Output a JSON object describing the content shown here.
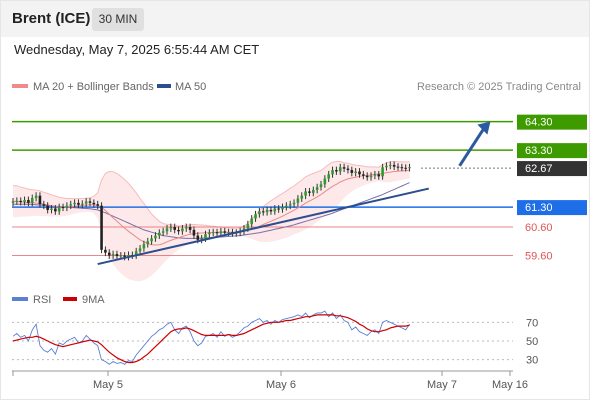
{
  "header": {
    "title": "Brent (ICE)",
    "timeframe": "30 MIN",
    "datetime": "Wednesday, May 7, 2025 6:55:44 AM CET"
  },
  "legend": {
    "ma20_label": "MA 20 + Bollinger Bands",
    "ma50_label": "MA 50",
    "credit": "Research © 2025 Trading Central"
  },
  "rsi_legend": {
    "rsi_label": "RSI",
    "ma_label": "9MA"
  },
  "chart_data": [
    {
      "type": "candlestick",
      "title": "Brent (ICE)",
      "x_ticks": [
        "May 5",
        "May 6",
        "May 7",
        "May 16"
      ],
      "ylim": [
        58.6,
        65.2
      ],
      "current_price": 62.67,
      "levels": [
        {
          "value": 64.3,
          "label": "64.30",
          "kind": "resistance",
          "color": "#3d9b00"
        },
        {
          "value": 63.3,
          "label": "63.30",
          "kind": "resistance",
          "color": "#3d9b00"
        },
        {
          "value": 62.67,
          "label": "62.67",
          "kind": "last",
          "color": "#333333"
        },
        {
          "value": 61.3,
          "label": "61.30",
          "kind": "pivot",
          "color": "#1e6ee8"
        },
        {
          "value": 60.6,
          "label": "60.60",
          "kind": "support",
          "color": "#e05555"
        },
        {
          "value": 59.6,
          "label": "59.60",
          "kind": "support",
          "color": "#e05555"
        }
      ],
      "series_close": [
        61.5,
        61.52,
        61.48,
        61.55,
        61.45,
        61.62,
        61.7,
        61.4,
        61.35,
        61.2,
        61.25,
        61.15,
        61.3,
        61.28,
        61.35,
        61.4,
        61.45,
        61.38,
        61.42,
        61.5,
        61.45,
        61.4,
        61.35,
        59.8,
        59.7,
        59.6,
        59.65,
        59.58,
        59.6,
        59.55,
        59.62,
        59.6,
        59.75,
        59.85,
        60.0,
        60.1,
        60.2,
        60.3,
        60.4,
        60.45,
        60.55,
        60.6,
        60.5,
        60.45,
        60.55,
        60.6,
        60.5,
        60.3,
        60.15,
        60.2,
        60.35,
        60.4,
        60.42,
        60.38,
        60.45,
        60.4,
        60.42,
        60.38,
        60.4,
        60.45,
        60.55,
        60.7,
        60.9,
        61.05,
        61.15,
        61.12,
        61.2,
        61.15,
        61.25,
        61.22,
        61.3,
        61.35,
        61.4,
        61.45,
        61.6,
        61.7,
        61.85,
        61.8,
        61.9,
        62.0,
        62.1,
        62.3,
        62.45,
        62.6,
        62.55,
        62.7,
        62.65,
        62.6,
        62.5,
        62.55,
        62.45,
        62.4,
        62.35,
        62.4,
        62.45,
        62.38,
        62.7,
        62.75,
        62.78,
        62.72,
        62.7,
        62.68,
        62.67,
        62.7
      ],
      "ma20": [
        61.5,
        61.5,
        61.48,
        61.47,
        61.45,
        61.45,
        61.44,
        61.43,
        61.4,
        61.38,
        61.35,
        61.33,
        61.3,
        61.3,
        61.3,
        61.32,
        61.33,
        61.35,
        61.36,
        61.37,
        61.38,
        61.38,
        61.36,
        61.3,
        61.18,
        61.05,
        60.92,
        60.8,
        60.68,
        60.56,
        60.45,
        60.35,
        60.25,
        60.15,
        60.08,
        60.02,
        59.98,
        59.97,
        59.98,
        60.02,
        60.08,
        60.13,
        60.18,
        60.22,
        60.27,
        60.31,
        60.35,
        60.37,
        60.38,
        60.39,
        60.4,
        60.4,
        60.41,
        60.41,
        60.42,
        60.42,
        60.42,
        60.42,
        60.42,
        60.43,
        60.45,
        60.48,
        60.53,
        60.58,
        60.63,
        60.69,
        60.75,
        60.8,
        60.86,
        60.92,
        60.98,
        61.05,
        61.12,
        61.19,
        61.27,
        61.35,
        61.44,
        61.51,
        61.58,
        61.66,
        61.74,
        61.84,
        61.94,
        62.03,
        62.1,
        62.18,
        62.24,
        62.29,
        62.32,
        62.35,
        62.38,
        62.4,
        62.41,
        62.43,
        62.45,
        62.46,
        62.48,
        62.51,
        62.53,
        62.55,
        62.56,
        62.57,
        62.58,
        62.6
      ],
      "bb_width": [
        0.55,
        0.55,
        0.52,
        0.5,
        0.48,
        0.46,
        0.45,
        0.44,
        0.42,
        0.4,
        0.38,
        0.36,
        0.34,
        0.32,
        0.3,
        0.28,
        0.26,
        0.25,
        0.24,
        0.24,
        0.25,
        0.3,
        0.45,
        0.95,
        1.3,
        1.5,
        1.62,
        1.68,
        1.7,
        1.7,
        1.68,
        1.62,
        1.55,
        1.45,
        1.35,
        1.22,
        1.08,
        0.95,
        0.82,
        0.7,
        0.62,
        0.55,
        0.48,
        0.42,
        0.38,
        0.35,
        0.33,
        0.32,
        0.3,
        0.28,
        0.26,
        0.24,
        0.22,
        0.2,
        0.18,
        0.16,
        0.15,
        0.14,
        0.14,
        0.15,
        0.18,
        0.25,
        0.35,
        0.45,
        0.55,
        0.62,
        0.68,
        0.72,
        0.75,
        0.78,
        0.8,
        0.82,
        0.84,
        0.85,
        0.88,
        0.9,
        0.92,
        0.92,
        0.9,
        0.88,
        0.85,
        0.85,
        0.86,
        0.85,
        0.8,
        0.72,
        0.62,
        0.55,
        0.48,
        0.42,
        0.38,
        0.34,
        0.3,
        0.28,
        0.26,
        0.24,
        0.3,
        0.34,
        0.36,
        0.35,
        0.33,
        0.32,
        0.3,
        0.3
      ],
      "ma50": [
        61.4,
        61.4,
        61.4,
        61.4,
        61.4,
        61.39,
        61.38,
        61.37,
        61.36,
        61.35,
        61.34,
        61.33,
        61.32,
        61.31,
        61.3,
        61.29,
        61.28,
        61.27,
        61.26,
        61.25,
        61.24,
        61.22,
        61.2,
        61.15,
        61.1,
        61.04,
        60.98,
        60.92,
        60.86,
        60.8,
        60.74,
        60.68,
        60.62,
        60.56,
        60.5,
        60.46,
        60.42,
        60.38,
        60.34,
        60.3,
        60.28,
        60.26,
        60.24,
        60.22,
        60.21,
        60.2,
        60.2,
        60.2,
        60.2,
        60.21,
        60.22,
        60.22,
        60.23,
        60.24,
        60.25,
        60.26,
        60.27,
        60.28,
        60.29,
        60.3,
        60.32,
        60.34,
        60.36,
        60.38,
        60.4,
        60.43,
        60.46,
        60.49,
        60.52,
        60.55,
        60.58,
        60.61,
        60.64,
        60.68,
        60.72,
        60.76,
        60.8,
        60.84,
        60.88,
        60.92,
        60.96,
        61.0,
        61.04,
        61.09,
        61.14,
        61.19,
        61.24,
        61.29,
        61.34,
        61.39,
        61.44,
        61.49,
        61.54,
        61.59,
        61.64,
        61.69,
        61.74,
        61.8,
        61.86,
        61.92,
        61.98,
        62.04,
        62.1,
        62.16
      ],
      "trendline": {
        "from": {
          "bar": 22,
          "value": 59.3
        },
        "to": {
          "bar": 108,
          "value": 61.95
        }
      },
      "projection": {
        "from": {
          "bar": 116,
          "value": 62.75
        },
        "to": {
          "bar": 124,
          "value": 64.3
        }
      }
    },
    {
      "type": "line",
      "title": "RSI",
      "y_ticks": [
        "70",
        "50",
        "30"
      ],
      "ylim": [
        20,
        80
      ],
      "series": [
        {
          "name": "RSI",
          "color": "#5b7fd6",
          "values": [
            55,
            58,
            54,
            56,
            50,
            62,
            68,
            45,
            40,
            38,
            42,
            36,
            48,
            46,
            50,
            52,
            54,
            48,
            50,
            56,
            52,
            48,
            45,
            30,
            28,
            25,
            28,
            26,
            27,
            25,
            29,
            28,
            35,
            40,
            45,
            50,
            55,
            58,
            62,
            64,
            68,
            70,
            62,
            58,
            64,
            66,
            60,
            50,
            45,
            48,
            55,
            56,
            58,
            54,
            60,
            55,
            57,
            54,
            56,
            60,
            64,
            66,
            70,
            72,
            74,
            70,
            72,
            68,
            72,
            70,
            73,
            74,
            75,
            76,
            78,
            76,
            80,
            75,
            78,
            80,
            80,
            82,
            76,
            80,
            74,
            78,
            72,
            70,
            62,
            65,
            60,
            58,
            56,
            60,
            62,
            58,
            70,
            72,
            70,
            68,
            66,
            64,
            62,
            68
          ]
        },
        {
          "name": "9MA",
          "color": "#cc0000",
          "values": [
            50,
            51,
            52,
            53,
            54,
            54,
            55,
            54,
            52,
            50,
            48,
            46,
            45,
            44,
            45,
            46,
            47,
            48,
            49,
            50,
            51,
            50,
            49,
            46,
            42,
            38,
            35,
            32,
            30,
            28,
            27,
            27,
            28,
            30,
            33,
            36,
            40,
            44,
            48,
            52,
            56,
            60,
            62,
            63,
            63,
            64,
            63,
            61,
            59,
            57,
            56,
            56,
            56,
            56,
            56,
            56,
            57,
            56,
            56,
            57,
            58,
            60,
            62,
            64,
            66,
            68,
            69,
            70,
            70,
            70,
            71,
            72,
            72,
            73,
            74,
            75,
            76,
            76,
            77,
            78,
            78,
            78,
            78,
            78,
            77,
            77,
            76,
            75,
            73,
            71,
            68,
            66,
            63,
            61,
            60,
            60,
            61,
            62,
            64,
            65,
            66,
            66,
            66,
            67
          ]
        }
      ]
    }
  ]
}
